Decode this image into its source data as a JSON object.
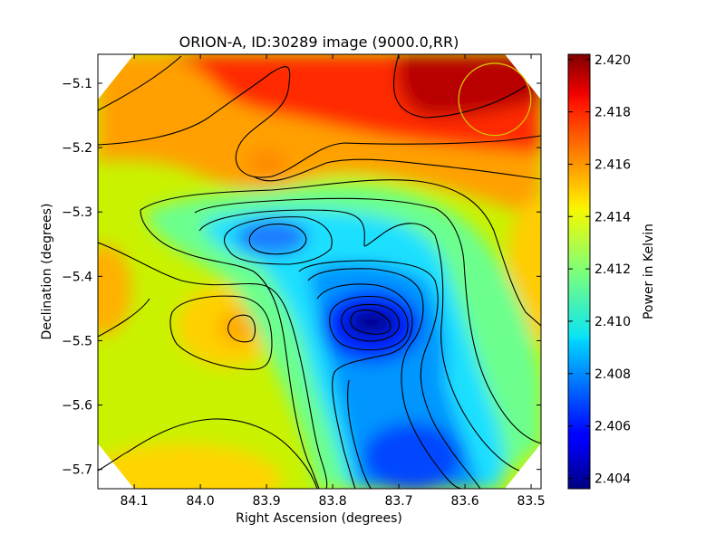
{
  "chart_data": {
    "type": "heatmap",
    "title": "ORION-A, ID:30289 image (9000.0,RR)",
    "xlabel": "Right Ascension (degrees)",
    "ylabel": "Declination (degrees)",
    "colorbar_label": "Power in Kelvin",
    "xlim": [
      84.155,
      83.485
    ],
    "ylim": [
      -5.73,
      -5.055
    ],
    "x_ticks": [
      84.1,
      84.0,
      83.9,
      83.8,
      83.7,
      83.6,
      83.5
    ],
    "x_tick_labels": [
      "84.1",
      "84.0",
      "83.9",
      "83.8",
      "83.7",
      "83.6",
      "83.5"
    ],
    "y_ticks": [
      -5.1,
      -5.2,
      -5.3,
      -5.4,
      -5.5,
      -5.6,
      -5.7
    ],
    "y_tick_labels": [
      "−5.1",
      "−5.2",
      "−5.3",
      "−5.4",
      "−5.5",
      "−5.6",
      "−5.7"
    ],
    "colorbar_range": [
      2.4036,
      2.4202
    ],
    "colorbar_ticks": [
      2.404,
      2.406,
      2.408,
      2.41,
      2.412,
      2.414,
      2.416,
      2.418,
      2.42
    ],
    "colorbar_tick_labels": [
      "2.404",
      "2.406",
      "2.408",
      "2.410",
      "2.412",
      "2.414",
      "2.416",
      "2.418",
      "2.420"
    ],
    "colormap": "jet",
    "contours": true,
    "beam_circle": {
      "ra": 83.555,
      "dec": -5.125,
      "radius_deg": 0.056,
      "color": "#d4c200"
    },
    "features": [
      {
        "ra": 83.61,
        "dec": -5.08,
        "level": 2.4195,
        "kind": "max"
      },
      {
        "ra": 83.89,
        "dec": -5.215,
        "level": 2.4155,
        "kind": "local max"
      },
      {
        "ra": 84.12,
        "dec": -5.42,
        "level": 2.4155,
        "kind": "local max"
      },
      {
        "ra": 83.94,
        "dec": -5.48,
        "level": 2.4157,
        "kind": "local max"
      },
      {
        "ra": 83.89,
        "dec": -5.34,
        "level": 2.408,
        "kind": "local min"
      },
      {
        "ra": 83.745,
        "dec": -5.475,
        "level": 2.404,
        "kind": "min"
      },
      {
        "ra": 83.72,
        "dec": -5.68,
        "level": 2.406,
        "kind": "local min"
      },
      {
        "ra": 84.0,
        "dec": -5.7,
        "level": 2.415,
        "kind": "local max"
      }
    ]
  }
}
